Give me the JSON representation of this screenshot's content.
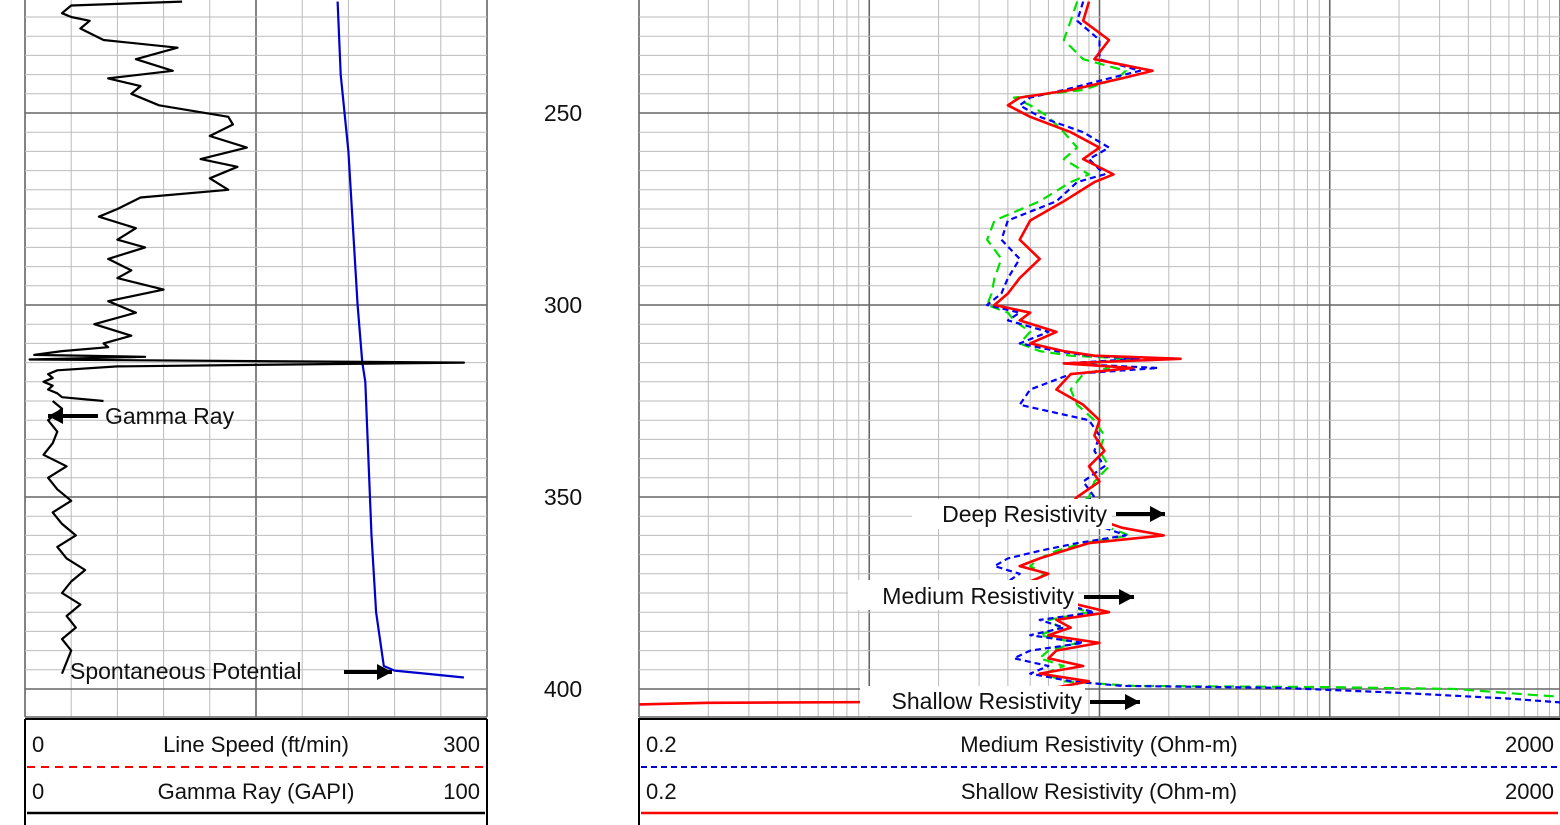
{
  "chart_data": {
    "type": "line",
    "depth_labels": [
      "250",
      "300",
      "350",
      "400"
    ],
    "depth_range": [
      221,
      404
    ],
    "tracks": [
      {
        "id": "track1",
        "scales": [
          {
            "min": "0",
            "label": "Line Speed (ft/min)",
            "max": "300",
            "color": "#ff0000",
            "style": "dashed"
          },
          {
            "min": "0",
            "label": "Gamma Ray (GAPI)",
            "max": "100",
            "color": "#000000",
            "style": "solid"
          }
        ],
        "series": [
          {
            "name": "Gamma Ray",
            "color": "#000000",
            "scale_range": [
              0,
              100
            ],
            "depth": [
              221,
              222,
              223,
              224,
              225,
              226,
              228,
              231,
              233,
              236,
              239,
              241,
              243,
              245,
              248,
              251,
              253,
              256,
              259,
              262,
              264,
              267,
              270,
              272,
              275,
              277,
              280,
              283,
              285,
              288,
              291,
              293,
              296,
              299,
              302,
              305,
              308,
              310,
              311,
              312,
              313,
              313.5,
              314.2,
              315,
              316,
              317,
              318,
              319,
              320,
              321,
              322,
              323,
              324,
              325
            ],
            "values": [
              34,
              10,
              9,
              8,
              10,
              14,
              12,
              17,
              33,
              24,
              32,
              18,
              25,
              23,
              29,
              44,
              45,
              40,
              48,
              38,
              46,
              40,
              44,
              25,
              20,
              16,
              24,
              20,
              26,
              18,
              23,
              20,
              30,
              18,
              24,
              15,
              23,
              17,
              18,
              8,
              2,
              26,
              1,
              95,
              20,
              7,
              5,
              6,
              4,
              6,
              5,
              7,
              8,
              17
            ]
          },
          {
            "name": "Spontaneous Potential",
            "color": "#000000",
            "scale_range": [
              0,
              100
            ],
            "depth": [
              325,
              327,
              330,
              333,
              336,
              339,
              342,
              345,
              348,
              351,
              354,
              357,
              360,
              363,
              366,
              369,
              372,
              375,
              378,
              381,
              384,
              387,
              390,
              393,
              396
            ],
            "values": [
              6,
              8,
              5,
              7,
              6,
              4,
              9,
              5,
              7,
              10,
              6,
              8,
              11,
              7,
              9,
              13,
              10,
              8,
              12,
              9,
              11,
              8,
              10,
              9,
              8
            ]
          },
          {
            "name": "Line Speed",
            "color": "#0000cc",
            "scale_range": [
              0,
              300
            ],
            "depth": [
              221,
              240,
              260,
              280,
              300,
              315,
              320,
              340,
              360,
              380,
              394,
              395.2,
              396,
              397
            ],
            "values": [
              203,
              205,
              210,
              213,
              216,
              219,
              221,
              223,
              225,
              228,
              233,
              240,
              260,
              285
            ]
          }
        ]
      },
      {
        "id": "track2",
        "log_scale": true,
        "scales": [
          {
            "min": "0.2",
            "label": "Medium Resistivity (Ohm-m)",
            "max": "2000",
            "color": "#0000cc",
            "style": "dashed"
          },
          {
            "min": "0.2",
            "label": "Shallow Resistivity (Ohm-m)",
            "max": "2000",
            "color": "#ff0000",
            "style": "solid"
          }
        ],
        "series": [
          {
            "name": "Shallow Resistivity",
            "color": "#ff0000",
            "style": "solid",
            "scale_range": [
              0.2,
              2000
            ],
            "depth": [
              221,
              226,
              231,
              236,
              239,
              241,
              244,
              246,
              248,
              251,
              255,
              259,
              262,
              266,
              268,
              273,
              278,
              283,
              288,
              293,
              297,
              300,
              302,
              304,
              307,
              310,
              312,
              313.2,
              314,
              315.2,
              316.4,
              318,
              322,
              326,
              330,
              334,
              338,
              342,
              346,
              350,
              354,
              356,
              358,
              360,
              362,
              364,
              366,
              368,
              370,
              372,
              374,
              376,
              378,
              380,
              382,
              384,
              386,
              388,
              390,
              392,
              394,
              396,
              398,
              400,
              402,
              403,
              403.3,
              403.6,
              404
            ],
            "values": [
              18,
              17,
              22,
              19,
              34,
              25,
              15,
              9,
              8,
              10,
              15,
              20,
              17,
              23,
              19,
              14,
              10,
              9,
              11,
              9,
              8,
              7,
              10,
              9,
              13,
              10,
              14,
              19,
              45,
              14,
              28,
              15,
              13,
              17,
              20,
              19,
              21,
              18,
              20,
              16,
              14,
              20,
              25,
              38,
              18,
              14,
              11,
              9,
              12,
              10,
              13,
              11,
              16,
              22,
              13,
              15,
              12,
              20,
              13,
              12,
              17,
              11,
              18,
              12,
              13,
              11,
              5,
              0.4,
              0.2
            ]
          },
          {
            "name": "Medium Resistivity",
            "color": "#0000ff",
            "style": "dashed",
            "scale_range": [
              0.2,
              2000
            ],
            "depth": [
              221,
              226,
              231,
              236,
              239,
              241,
              244,
              246,
              248,
              251,
              255,
              259,
              262,
              266,
              268,
              273,
              278,
              283,
              288,
              293,
              297,
              300,
              302,
              304,
              307,
              310,
              312,
              313.2,
              314,
              315.2,
              316.4,
              318,
              322,
              326,
              330,
              334,
              338,
              342,
              346,
              350,
              354,
              356,
              358,
              360,
              362,
              364,
              366,
              368,
              370,
              372,
              374,
              376,
              378,
              380,
              382,
              384,
              386,
              388,
              390,
              392,
              394,
              396,
              398,
              399.2,
              399.7,
              401,
              402.5,
              403.5
            ],
            "values": [
              17,
              16,
              20,
              20,
              30,
              22,
              14,
              10,
              9,
              11,
              17,
              22,
              18,
              21,
              16,
              13,
              8,
              7.5,
              9,
              8,
              7.5,
              6.5,
              9,
              8,
              12,
              9,
              13,
              18,
              30,
              14,
              36,
              15,
              10,
              9,
              18,
              20,
              19,
              21,
              17,
              19,
              14,
              13,
              21,
              26,
              16,
              11,
              8,
              7,
              9,
              8,
              11,
              9,
              14,
              19,
              11,
              14,
              10,
              17,
              10,
              8.5,
              12,
              10,
              15,
              25,
              120,
              400,
              1200,
              2000
            ]
          },
          {
            "name": "Deep Resistivity",
            "color": "#00e000",
            "style": "dashed",
            "scale_range": [
              0.2,
              2000
            ],
            "depth": [
              221,
              226,
              231,
              236,
              239,
              241,
              244,
              246,
              248,
              251,
              255,
              259,
              262,
              266,
              268,
              273,
              278,
              283,
              288,
              293,
              297,
              300,
              302,
              304,
              307,
              310,
              312,
              313.2,
              314,
              315.2,
              316.4,
              318,
              322,
              326,
              330,
              334,
              338,
              342,
              346,
              350,
              354,
              356,
              358,
              360,
              362,
              364,
              366,
              368,
              370,
              372,
              374,
              376,
              378,
              380,
              382,
              384,
              386,
              388,
              390,
              392,
              394,
              396,
              398,
              399.2,
              399.5,
              400,
              401.5,
              402
            ],
            "values": [
              16,
              15,
              14,
              17,
              26,
              24,
              17,
              8.5,
              10,
              12,
              14,
              16,
              14,
              18,
              15,
              11,
              7,
              6.5,
              7.5,
              7,
              6.8,
              6.5,
              8,
              8.5,
              10,
              9,
              11,
              15,
              28,
              18,
              22,
              17,
              15,
              16,
              19,
              21,
              20,
              22,
              19,
              18,
              15,
              17,
              22,
              27,
              17,
              13,
              11,
              10,
              11.5,
              10.5,
              12,
              11,
              14,
              18,
              12,
              13.5,
              11,
              16,
              12,
              11,
              14,
              11.5,
              14,
              28,
              200,
              700,
              1500,
              2000
            ]
          }
        ]
      }
    ],
    "annotations": [
      {
        "text": "Gamma Ray",
        "track": "track1"
      },
      {
        "text": "Spontaneous Potential",
        "track": "track1"
      },
      {
        "text": "Deep Resistivity",
        "track": "track2"
      },
      {
        "text": "Medium Resistivity",
        "track": "track2"
      },
      {
        "text": "Shallow Resistivity",
        "track": "track2"
      }
    ]
  }
}
